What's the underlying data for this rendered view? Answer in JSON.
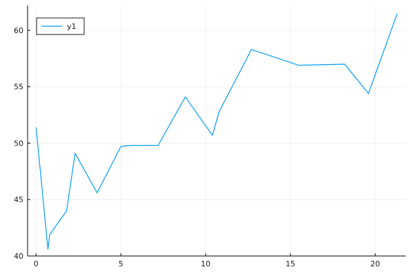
{
  "chart_data": {
    "type": "line",
    "title": "",
    "xlabel": "",
    "ylabel": "",
    "xlim": [
      -0.5,
      21.8
    ],
    "ylim": [
      40,
      62.2
    ],
    "xticks": [
      0,
      5,
      10,
      15,
      20
    ],
    "yticks": [
      40,
      45,
      50,
      55,
      60
    ],
    "xtick_labels": [
      "0",
      "5",
      "10",
      "15",
      "20"
    ],
    "ytick_labels": [
      "40",
      "45",
      "50",
      "55",
      "60"
    ],
    "grid": true,
    "legend": {
      "position": "top-left",
      "entries": [
        "y1"
      ]
    },
    "series": [
      {
        "name": "y1",
        "color": "#009AFA",
        "x": [
          0.0,
          0.7,
          0.8,
          1.8,
          2.3,
          3.6,
          5.0,
          5.6,
          7.2,
          8.8,
          10.4,
          10.8,
          12.7,
          15.5,
          18.2,
          19.6,
          21.3
        ],
        "y": [
          51.4,
          40.6,
          41.9,
          44.0,
          49.1,
          45.6,
          49.7,
          49.8,
          49.8,
          54.1,
          50.7,
          52.8,
          58.3,
          56.9,
          57.0,
          54.4,
          61.5
        ]
      }
    ]
  }
}
